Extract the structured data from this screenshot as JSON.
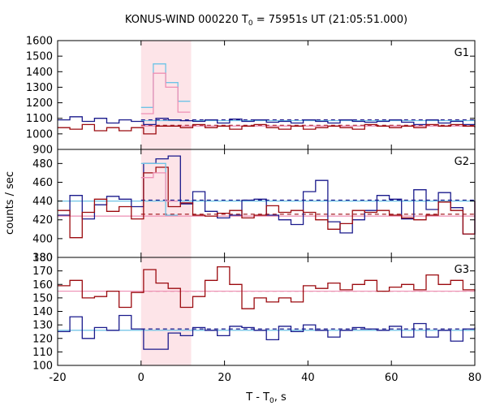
{
  "chart_data": {
    "type": "line",
    "title_main": "KONUS-WIND 000220 T",
    "title_sub": "0",
    "title_rest": " = 75951s UT (21:05:51.000)",
    "xlabel_main": "T - T",
    "xlabel_sub": "0",
    "xlabel_rest": ", s",
    "ylabel": "counts / sec",
    "xlim": [
      -20,
      80
    ],
    "x_ticks": [
      -20,
      0,
      20,
      40,
      60,
      80
    ],
    "highlight_interval": [
      0,
      12
    ],
    "colors": {
      "highlight": "#fde4e8",
      "dark_red": "#9b0a0f",
      "dark_blue": "#1a1a8c",
      "light_blue": "#6ec3e6",
      "pink": "#ee8fb4"
    },
    "panels": [
      {
        "label": "G1",
        "ylim": [
          900,
          1600
        ],
        "y_ticks": [
          900,
          1000,
          1100,
          1200,
          1300,
          1400,
          1500,
          1600
        ],
        "series": [
          {
            "color_key": "dark_blue",
            "bin": 2.944,
            "x0": -20,
            "values": [
              1090,
              1110,
              1080,
              1100,
              1070,
              1090,
              1080,
              1060,
              1100,
              1090,
              1085,
              1080,
              1090,
              1070,
              1095,
              1080,
              1090,
              1075,
              1080,
              1070,
              1090,
              1080,
              1070,
              1090,
              1080,
              1075,
              1080,
              1090,
              1075,
              1060,
              1090,
              1070,
              1080,
              1060,
              1090
            ]
          },
          {
            "color_key": "dark_red",
            "bin": 2.944,
            "x0": -20,
            "values": [
              1040,
              1030,
              1060,
              1020,
              1040,
              1020,
              1040,
              1000,
              1050,
              1050,
              1040,
              1060,
              1040,
              1050,
              1030,
              1050,
              1060,
              1040,
              1030,
              1050,
              1030,
              1040,
              1050,
              1040,
              1030,
              1060,
              1050,
              1040,
              1050,
              1040,
              1060,
              1050,
              1060,
              1050,
              1040
            ]
          },
          {
            "color_key": "light_blue",
            "bin": 2.944,
            "x0": 0,
            "values": [
              1170,
              1450,
              1330,
              1210
            ]
          },
          {
            "color_key": "pink",
            "bin": 2.944,
            "x0": 0,
            "values": [
              1130,
              1390,
              1300,
              1140
            ]
          }
        ],
        "bg_levels": [
          {
            "color_key": "dark_blue",
            "y": 1090,
            "x_from": 0,
            "dash": true
          },
          {
            "color_key": "dark_red",
            "y": 1055,
            "x_from": 0,
            "dash": true
          },
          {
            "color_key": "light_blue",
            "y": 1085,
            "x_from": 0,
            "dash": false
          },
          {
            "color_key": "pink",
            "y": 1050,
            "x_from": 0,
            "dash": false
          }
        ]
      },
      {
        "label": "G2",
        "ylim": [
          380,
          495
        ],
        "y_ticks": [
          380,
          400,
          420,
          440,
          460,
          480
        ],
        "series": [
          {
            "color_key": "dark_blue",
            "bin": 2.944,
            "x0": -20,
            "values": [
              425,
              446,
              421,
              436,
              445,
              442,
              434,
              480,
              485,
              488,
              437,
              450,
              429,
              422,
              425,
              441,
              442,
              425,
              420,
              415,
              450,
              462,
              418,
              406,
              420,
              430,
              446,
              442,
              421,
              452,
              431,
              449,
              433,
              405,
              440
            ]
          },
          {
            "color_key": "dark_red",
            "bin": 2.944,
            "x0": -20,
            "values": [
              430,
              401,
              428,
              442,
              429,
              434,
              421,
              470,
              476,
              434,
              438,
              425,
              424,
              427,
              430,
              422,
              425,
              435,
              428,
              430,
              428,
              420,
              410,
              416,
              430,
              428,
              430,
              425,
              422,
              420,
              425,
              439,
              430,
              405,
              440
            ]
          },
          {
            "color_key": "light_blue",
            "bin": 2.944,
            "x0": 0,
            "values": [
              480,
              480,
              425
            ]
          },
          {
            "color_key": "pink",
            "bin": 2.944,
            "x0": 0,
            "values": [
              465,
              470,
              440
            ]
          }
        ],
        "bg_levels": [
          {
            "color_key": "dark_blue",
            "y": 441,
            "x_from": 0,
            "dash": true
          },
          {
            "color_key": "dark_red",
            "y": 426,
            "x_from": 0,
            "dash": true
          },
          {
            "color_key": "light_blue",
            "y": 440,
            "x_from": -20,
            "dash": false
          },
          {
            "color_key": "pink",
            "y": 424,
            "x_from": -20,
            "dash": false
          }
        ]
      },
      {
        "label": "G3",
        "ylim": [
          100,
          180
        ],
        "y_ticks": [
          100,
          110,
          120,
          130,
          140,
          150,
          160,
          170,
          180
        ],
        "series": [
          {
            "color_key": "dark_blue",
            "bin": 2.944,
            "x0": -20,
            "values": [
              125,
              136,
              120,
              128,
              126,
              137,
              127,
              112,
              112,
              124,
              122,
              128,
              126,
              122,
              129,
              128,
              126,
              119,
              129,
              125,
              130,
              126,
              121,
              126,
              128,
              127,
              126,
              129,
              121,
              131,
              121,
              126,
              118,
              127,
              128
            ]
          },
          {
            "color_key": "dark_red",
            "bin": 2.944,
            "x0": -20,
            "values": [
              159,
              163,
              150,
              151,
              155,
              143,
              154,
              171,
              161,
              157,
              143,
              151,
              163,
              173,
              160,
              142,
              150,
              147,
              150,
              147,
              159,
              157,
              161,
              156,
              160,
              163,
              155,
              158,
              160,
              156,
              167,
              160,
              163,
              156,
              155
            ]
          }
        ],
        "bg_levels": [
          {
            "color_key": "dark_blue",
            "y": 127,
            "x_from": 0,
            "dash": true
          },
          {
            "color_key": "dark_red",
            "y": 155,
            "x_from": 0,
            "dash": true
          },
          {
            "color_key": "light_blue",
            "y": 126,
            "x_from": -20,
            "dash": false
          },
          {
            "color_key": "pink",
            "y": 155,
            "x_from": -20,
            "dash": false
          }
        ]
      }
    ]
  }
}
